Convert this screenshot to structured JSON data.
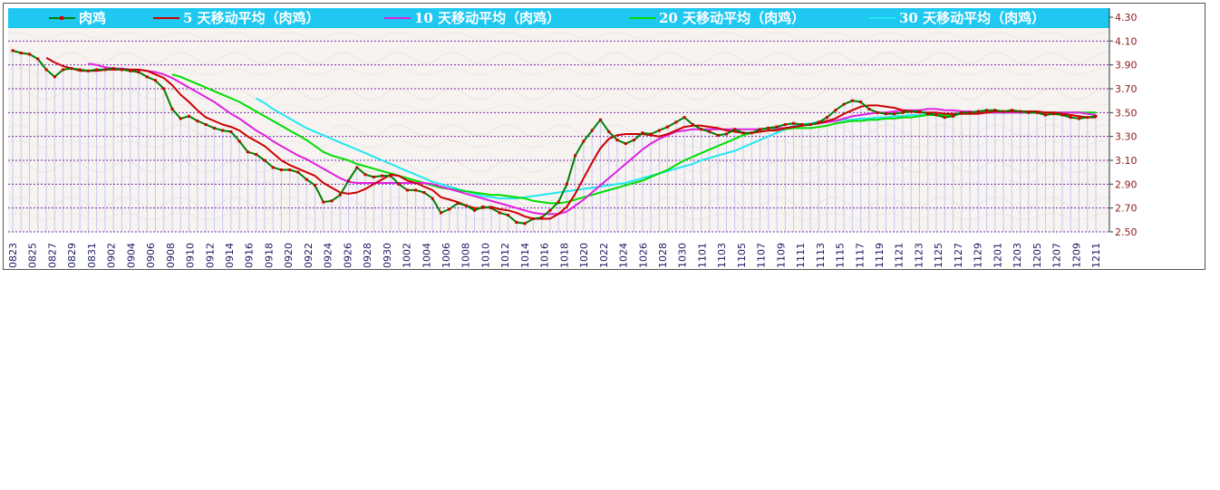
{
  "chart_data": {
    "type": "line",
    "series": [
      {
        "name": "肉鸡",
        "color": "#008000",
        "marker_color": "#cc0000",
        "values": [
          4.02,
          4.0,
          3.99,
          3.95,
          3.86,
          3.8,
          3.86,
          3.87,
          3.86,
          3.85,
          3.86,
          3.86,
          3.87,
          3.86,
          3.85,
          3.84,
          3.8,
          3.77,
          3.7,
          3.53,
          3.45,
          3.47,
          3.43,
          3.4,
          3.37,
          3.35,
          3.34,
          3.26,
          3.17,
          3.15,
          3.1,
          3.04,
          3.02,
          3.02,
          3.0,
          2.94,
          2.89,
          2.75,
          2.76,
          2.81,
          2.93,
          3.04,
          2.98,
          2.96,
          2.97,
          2.97,
          2.9,
          2.85,
          2.85,
          2.83,
          2.78,
          2.66,
          2.69,
          2.74,
          2.72,
          2.68,
          2.71,
          2.7,
          2.66,
          2.64,
          2.58,
          2.57,
          2.61,
          2.62,
          2.68,
          2.75,
          2.9,
          3.14,
          3.26,
          3.35,
          3.44,
          3.34,
          3.27,
          3.24,
          3.27,
          3.33,
          3.32,
          3.35,
          3.38,
          3.42,
          3.46,
          3.4,
          3.36,
          3.34,
          3.31,
          3.32,
          3.36,
          3.33,
          3.33,
          3.36,
          3.37,
          3.38,
          3.4,
          3.41,
          3.4,
          3.4,
          3.42,
          3.46,
          3.52,
          3.57,
          3.6,
          3.59,
          3.53,
          3.5,
          3.49,
          3.49,
          3.5,
          3.51,
          3.51,
          3.49,
          3.48,
          3.46,
          3.47,
          3.5,
          3.5,
          3.51,
          3.52,
          3.52,
          3.51,
          3.52,
          3.51,
          3.5,
          3.5,
          3.48,
          3.49,
          3.48,
          3.46,
          3.45,
          3.46,
          3.47
        ]
      },
      {
        "name": "5  天移动平均（肉鸡）",
        "color": "#cc0000",
        "values": [
          null,
          null,
          null,
          null,
          3.96,
          3.92,
          3.89,
          3.87,
          3.85,
          3.85,
          3.85,
          3.86,
          3.86,
          3.86,
          3.86,
          3.86,
          3.85,
          3.82,
          3.79,
          3.73,
          3.65,
          3.59,
          3.52,
          3.46,
          3.43,
          3.4,
          3.38,
          3.35,
          3.3,
          3.26,
          3.22,
          3.16,
          3.1,
          3.06,
          3.03,
          3.0,
          2.97,
          2.91,
          2.87,
          2.83,
          2.82,
          2.83,
          2.86,
          2.9,
          2.94,
          2.98,
          2.97,
          2.93,
          2.91,
          2.88,
          2.85,
          2.79,
          2.77,
          2.75,
          2.72,
          2.7,
          2.7,
          2.71,
          2.69,
          2.68,
          2.66,
          2.63,
          2.61,
          2.61,
          2.61,
          2.65,
          2.71,
          2.82,
          2.95,
          3.08,
          3.2,
          3.28,
          3.31,
          3.32,
          3.32,
          3.32,
          3.31,
          3.3,
          3.32,
          3.35,
          3.38,
          3.39,
          3.39,
          3.38,
          3.37,
          3.35,
          3.34,
          3.33,
          3.33,
          3.34,
          3.35,
          3.35,
          3.37,
          3.38,
          3.39,
          3.4,
          3.41,
          3.43,
          3.45,
          3.49,
          3.52,
          3.55,
          3.56,
          3.56,
          3.55,
          3.54,
          3.52,
          3.51,
          3.5,
          3.5,
          3.5,
          3.49,
          3.49,
          3.49,
          3.49,
          3.49,
          3.5,
          3.51,
          3.51,
          3.51,
          3.51,
          3.51,
          3.51,
          3.5,
          3.5,
          3.49,
          3.48,
          3.47,
          3.46,
          3.46
        ]
      },
      {
        "name": "10  天移动平均（肉鸡）",
        "color": "#e020e0",
        "values": [
          null,
          null,
          null,
          null,
          null,
          null,
          null,
          null,
          null,
          3.91,
          3.9,
          3.88,
          3.87,
          3.87,
          3.86,
          3.86,
          3.85,
          3.84,
          3.82,
          3.79,
          3.75,
          3.71,
          3.67,
          3.63,
          3.59,
          3.54,
          3.49,
          3.45,
          3.4,
          3.35,
          3.31,
          3.26,
          3.22,
          3.18,
          3.14,
          3.11,
          3.07,
          3.03,
          2.99,
          2.95,
          2.92,
          2.91,
          2.91,
          2.91,
          2.91,
          2.91,
          2.91,
          2.91,
          2.91,
          2.91,
          2.9,
          2.88,
          2.86,
          2.84,
          2.82,
          2.8,
          2.78,
          2.76,
          2.74,
          2.72,
          2.7,
          2.68,
          2.66,
          2.65,
          2.65,
          2.65,
          2.67,
          2.72,
          2.77,
          2.83,
          2.89,
          2.95,
          3.01,
          3.07,
          3.13,
          3.19,
          3.24,
          3.28,
          3.31,
          3.34,
          3.35,
          3.36,
          3.36,
          3.36,
          3.36,
          3.36,
          3.36,
          3.36,
          3.36,
          3.36,
          3.37,
          3.37,
          3.37,
          3.38,
          3.39,
          3.4,
          3.41,
          3.42,
          3.43,
          3.45,
          3.47,
          3.48,
          3.49,
          3.5,
          3.5,
          3.51,
          3.52,
          3.52,
          3.52,
          3.53,
          3.53,
          3.52,
          3.52,
          3.51,
          3.51,
          3.5,
          3.5,
          3.5,
          3.5,
          3.5,
          3.5,
          3.5,
          3.5,
          3.5,
          3.5,
          3.5,
          3.5,
          3.5,
          3.49,
          3.48
        ]
      },
      {
        "name": "20  天移动平均（肉鸡）",
        "color": "#00dd00",
        "values": [
          null,
          null,
          null,
          null,
          null,
          null,
          null,
          null,
          null,
          null,
          null,
          null,
          null,
          null,
          null,
          null,
          null,
          null,
          null,
          3.82,
          3.8,
          3.77,
          3.74,
          3.71,
          3.68,
          3.65,
          3.62,
          3.59,
          3.55,
          3.51,
          3.47,
          3.43,
          3.39,
          3.35,
          3.31,
          3.27,
          3.22,
          3.17,
          3.14,
          3.12,
          3.1,
          3.07,
          3.05,
          3.03,
          3.01,
          2.99,
          2.97,
          2.95,
          2.93,
          2.91,
          2.89,
          2.87,
          2.86,
          2.85,
          2.84,
          2.83,
          2.82,
          2.81,
          2.81,
          2.8,
          2.79,
          2.78,
          2.76,
          2.75,
          2.74,
          2.74,
          2.75,
          2.77,
          2.79,
          2.81,
          2.83,
          2.85,
          2.87,
          2.89,
          2.91,
          2.93,
          2.96,
          2.99,
          3.02,
          3.06,
          3.1,
          3.13,
          3.16,
          3.19,
          3.22,
          3.25,
          3.28,
          3.31,
          3.33,
          3.34,
          3.35,
          3.36,
          3.36,
          3.37,
          3.37,
          3.37,
          3.38,
          3.39,
          3.41,
          3.42,
          3.43,
          3.43,
          3.44,
          3.44,
          3.45,
          3.45,
          3.46,
          3.46,
          3.47,
          3.48,
          3.48,
          3.48,
          3.48,
          3.49,
          3.49,
          3.5,
          3.5,
          3.5,
          3.5,
          3.5,
          3.5,
          3.5,
          3.5,
          3.5,
          3.5,
          3.5,
          3.5,
          3.5,
          3.5,
          3.5
        ]
      },
      {
        "name": "30  天移动平均（肉鸡）",
        "color": "#22e8f0",
        "values": [
          null,
          null,
          null,
          null,
          null,
          null,
          null,
          null,
          null,
          null,
          null,
          null,
          null,
          null,
          null,
          null,
          null,
          null,
          null,
          null,
          null,
          null,
          null,
          null,
          null,
          null,
          null,
          null,
          null,
          3.62,
          3.58,
          3.53,
          3.49,
          3.45,
          3.41,
          3.37,
          3.34,
          3.31,
          3.28,
          3.25,
          3.22,
          3.19,
          3.16,
          3.13,
          3.1,
          3.07,
          3.04,
          3.01,
          2.98,
          2.95,
          2.92,
          2.9,
          2.88,
          2.86,
          2.84,
          2.82,
          2.8,
          2.79,
          2.78,
          2.78,
          2.78,
          2.79,
          2.8,
          2.81,
          2.82,
          2.83,
          2.84,
          2.85,
          2.86,
          2.87,
          2.88,
          2.89,
          2.9,
          2.91,
          2.93,
          2.95,
          2.97,
          2.99,
          3.01,
          3.03,
          3.05,
          3.07,
          3.1,
          3.12,
          3.14,
          3.16,
          3.18,
          3.21,
          3.24,
          3.27,
          3.3,
          3.33,
          3.36,
          3.39,
          3.4,
          3.41,
          3.42,
          3.43,
          3.43,
          3.44,
          3.44,
          3.45,
          3.45,
          3.46,
          3.46,
          3.47,
          3.47,
          3.48,
          3.48,
          3.48,
          3.49,
          3.49,
          3.49,
          3.5,
          3.5,
          3.5,
          3.5,
          3.5,
          3.5,
          3.5,
          3.5,
          3.5,
          3.5,
          3.5,
          3.5,
          3.5,
          3.5,
          3.5,
          3.5,
          3.5
        ]
      }
    ],
    "x_tick_labels": [
      "0823",
      "0825",
      "0827",
      "0829",
      "0831",
      "0902",
      "0904",
      "0906",
      "0908",
      "0910",
      "0912",
      "0914",
      "0916",
      "0918",
      "0920",
      "0922",
      "0924",
      "0926",
      "0928",
      "0930",
      "1002",
      "1004",
      "1006",
      "1008",
      "1010",
      "1012",
      "1014",
      "1016",
      "1018",
      "1020",
      "1022",
      "1024",
      "1026",
      "1028",
      "1030",
      "1101",
      "1103",
      "1105",
      "1107",
      "1109",
      "1111",
      "1113",
      "1115",
      "1117",
      "1119",
      "1121",
      "1123",
      "1125",
      "1127",
      "1129",
      "1201",
      "1203",
      "1205",
      "1207",
      "1209",
      "1211"
    ],
    "y_ticks": [
      "2.50",
      "2.70",
      "2.90",
      "3.10",
      "3.30",
      "3.50",
      "3.70",
      "3.90",
      "4.10",
      "4.30"
    ],
    "ylim": [
      2.5,
      4.3
    ],
    "y_axis_position": "right",
    "legend_placement": "top",
    "legend_background": "#1ec8f0",
    "grid": true,
    "grid_color": "#7a2aa8"
  }
}
